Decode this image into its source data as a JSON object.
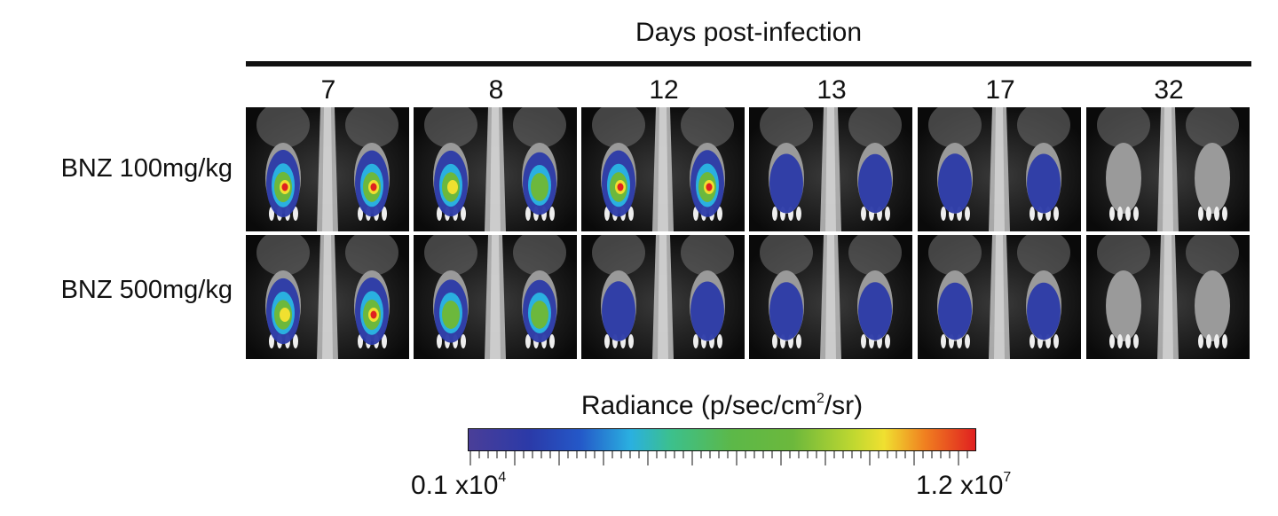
{
  "header": {
    "title": "Days post-infection"
  },
  "days": [
    "7",
    "8",
    "12",
    "13",
    "17",
    "32"
  ],
  "rows": [
    {
      "label": "BNZ 100mg/kg"
    },
    {
      "label": "BNZ 500mg/kg"
    }
  ],
  "colorbar": {
    "title_main": "Radiance (p/sec/cm",
    "title_sup": "2",
    "title_end": "/sr)",
    "min_base": "0.1 x10",
    "min_exp": "4",
    "max_base": "1.2 x10",
    "max_exp": "7",
    "colors": [
      "#4a3e98",
      "#2b3aa8",
      "#2458c8",
      "#2ab0e0",
      "#3cc08c",
      "#5cb848",
      "#6cb83c",
      "#c0d830",
      "#f0e030",
      "#f08020",
      "#e02020"
    ]
  }
}
